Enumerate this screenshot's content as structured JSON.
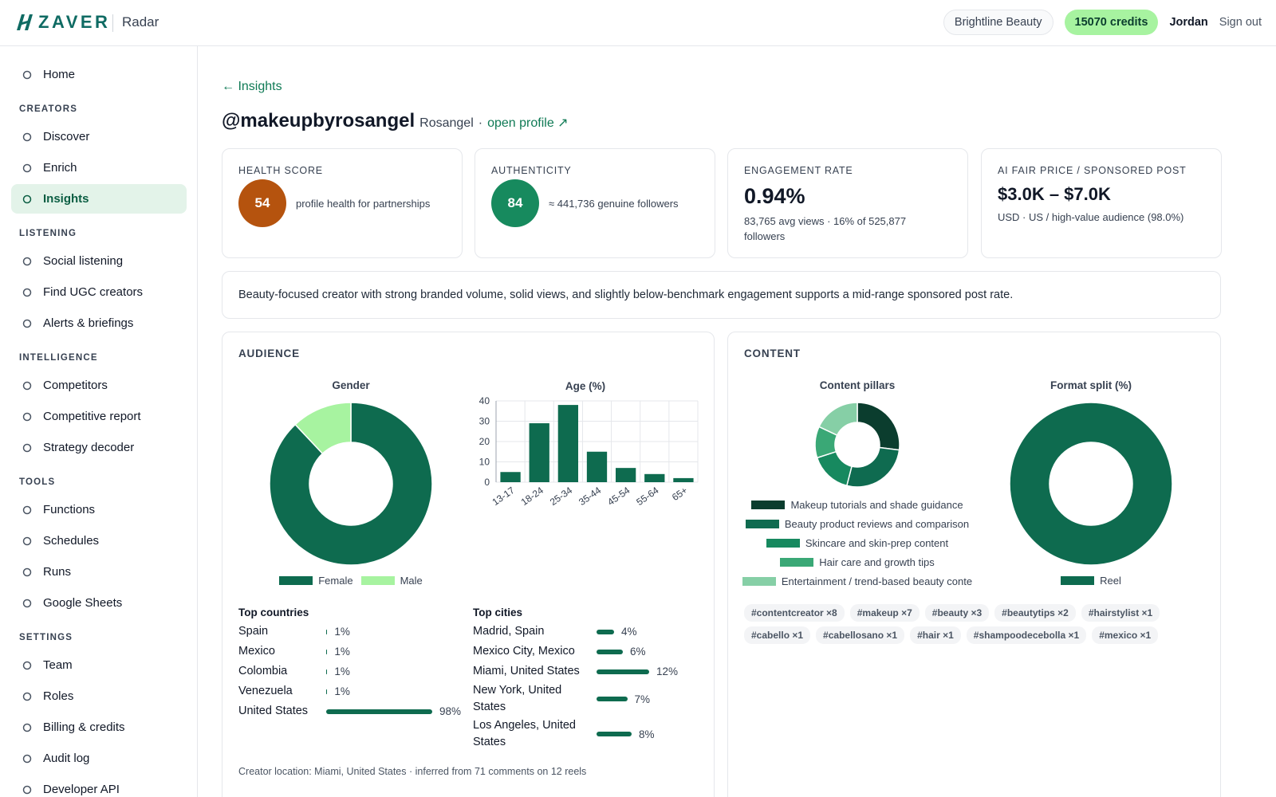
{
  "topbar": {
    "brand": "ZAVER",
    "product": "Radar",
    "workspace": "Brightline Beauty",
    "credits": "15070 credits",
    "user": "Jordan",
    "sign_out": "Sign out"
  },
  "sidebar": {
    "home": "Home",
    "active": {
      "section": 0,
      "item": 2
    },
    "sections": [
      {
        "title": "CREATORS",
        "items": [
          "Discover",
          "Enrich",
          "Insights"
        ]
      },
      {
        "title": "LISTENING",
        "items": [
          "Social listening",
          "Find UGC creators",
          "Alerts & briefings"
        ]
      },
      {
        "title": "INTELLIGENCE",
        "items": [
          "Competitors",
          "Competitive report",
          "Strategy decoder"
        ]
      },
      {
        "title": "TOOLS",
        "items": [
          "Functions",
          "Schedules",
          "Runs",
          "Google Sheets"
        ]
      },
      {
        "title": "SETTINGS",
        "items": [
          "Team",
          "Roles",
          "Billing & credits",
          "Audit log",
          "Developer API"
        ]
      }
    ]
  },
  "page": {
    "back": "← Insights",
    "handle": "@makeupbyrosangel",
    "display_name": "Rosangel",
    "separator": "·",
    "profile_link": "open profile ↗"
  },
  "cards": [
    {
      "label": "HEALTH SCORE",
      "score": 54,
      "color": "#b5530e",
      "text": "profile health for partnerships"
    },
    {
      "label": "AUTHENTICITY",
      "score": 84,
      "color": "#178a5e",
      "text": "≈ 441,736 genuine followers"
    },
    {
      "label": "ENGAGEMENT RATE",
      "value": "0.94%",
      "text": "83,765 avg views · 16% of 525,877 followers"
    },
    {
      "label": "AI FAIR PRICE / SPONSORED POST",
      "value": "$3.0K – $7.0K",
      "text": "USD · US / high-value audience (98.0%)"
    }
  ],
  "summary": "Beauty-focused creator with strong branded volume, solid views, and slightly below-benchmark engagement supports a mid-range sponsored post rate.",
  "audience": {
    "title": "AUDIENCE",
    "gender": {
      "type": "pie",
      "title": "Gender",
      "categories": [
        "Female",
        "Male"
      ],
      "values": [
        88,
        12
      ],
      "colors": [
        "#0e6b4f",
        "#a7f3a0"
      ]
    },
    "age": {
      "type": "bar",
      "title": "Age (%)",
      "categories": [
        "13-17",
        "18-24",
        "25-34",
        "35-44",
        "45-54",
        "55-64",
        "65+"
      ],
      "values": [
        5,
        29,
        38,
        15,
        7,
        4,
        2
      ],
      "color": "#0e6b4f",
      "ylim": [
        0,
        40
      ],
      "yticks": [
        0,
        10,
        20,
        30,
        40
      ],
      "grid": true
    },
    "top_countries": {
      "type": "bar",
      "orientation": "horizontal",
      "title": "Top countries",
      "categories": [
        "Spain",
        "Mexico",
        "Colombia",
        "Venezuela",
        "United States"
      ],
      "values": [
        1,
        1,
        1,
        1,
        98
      ],
      "value_labels": [
        "1%",
        "1%",
        "1%",
        "1%",
        "98%"
      ],
      "color": "#0e6b4f"
    },
    "top_cities": {
      "type": "bar",
      "orientation": "horizontal",
      "title": "Top cities",
      "categories": [
        "Madrid, Spain",
        "Mexico City, Mexico",
        "Miami, United States",
        "New York, United States",
        "Los Angeles, United States"
      ],
      "values": [
        4,
        6,
        12,
        7,
        8
      ],
      "value_labels": [
        "4%",
        "6%",
        "12%",
        "7%",
        "8%"
      ],
      "color": "#0e6b4f"
    },
    "footnote": "Creator location: Miami, United States · inferred from 71 comments on 12 reels"
  },
  "content": {
    "title": "CONTENT",
    "pillars": {
      "type": "pie",
      "title": "Content pillars",
      "categories": [
        "Makeup tutorials and shade guidance",
        "Beauty product reviews and comparison",
        "Skincare and skin-prep content",
        "Hair care and growth tips",
        "Entertainment / trend-based beauty conte"
      ],
      "values": [
        27,
        27,
        16,
        12,
        18
      ],
      "colors": [
        "#0b3d2e",
        "#0f6b50",
        "#17895f",
        "#3aa876",
        "#86cfa6"
      ]
    },
    "format_split": {
      "type": "pie",
      "title": "Format split (%)",
      "categories": [
        "Reel"
      ],
      "values": [
        100
      ],
      "colors": [
        "#0e6b4f"
      ]
    },
    "tags": [
      "#contentcreator ×8",
      "#makeup ×7",
      "#beauty ×3",
      "#beautytips ×2",
      "#hairstylist ×1",
      "#cabello ×1",
      "#cabellosano ×1",
      "#hair ×1",
      "#shampoodecebolla ×1",
      "#mexico ×1"
    ]
  }
}
